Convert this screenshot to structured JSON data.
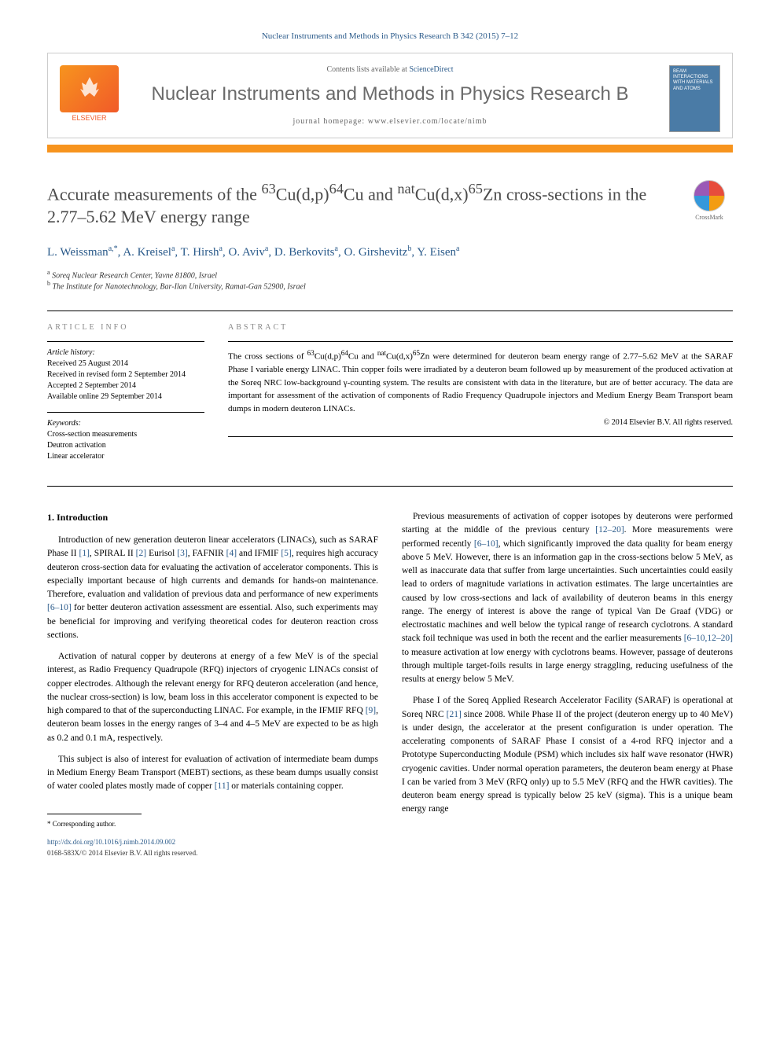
{
  "journal_ref": "Nuclear Instruments and Methods in Physics Research B 342 (2015) 7–12",
  "header": {
    "contents_text": "Contents lists available at ",
    "contents_link": "ScienceDirect",
    "journal_name": "Nuclear Instruments and Methods in Physics Research B",
    "homepage_label": "journal homepage: ",
    "homepage_url": "www.elsevier.com/locate/nimb",
    "elsevier_label": "ELSEVIER",
    "cover_text": "BEAM INTERACTIONS WITH MATERIALS AND ATOMS"
  },
  "title_html": "Accurate measurements of the <sup>63</sup>Cu(d,p)<sup>64</sup>Cu and <sup>nat</sup>Cu(d,x)<sup>65</sup>Zn cross-sections in the 2.77–5.62 MeV energy range",
  "crossmark_label": "CrossMark",
  "authors_html": "L. Weissman<span class='sup'>a,*</span>, A. Kreisel<span class='sup'>a</span>, T. Hirsh<span class='sup'>a</span>, O. Aviv<span class='sup'>a</span>, D. Berkovits<span class='sup'>a</span>, O. Girshevitz<span class='sup'>b</span>, Y. Eisen<span class='sup'>a</span>",
  "affiliations": [
    {
      "label": "a",
      "text": "Soreq Nuclear Research Center, Yavne 81800, Israel"
    },
    {
      "label": "b",
      "text": "The Institute for Nanotechnology, Bar-Ilan University, Ramat-Gan 52900, Israel"
    }
  ],
  "article_info": {
    "heading": "ARTICLE INFO",
    "history_label": "Article history:",
    "history": [
      "Received 25 August 2014",
      "Received in revised form 2 September 2014",
      "Accepted 2 September 2014",
      "Available online 29 September 2014"
    ],
    "keywords_label": "Keywords:",
    "keywords": [
      "Cross-section measurements",
      "Deutron activation",
      "Linear accelerator"
    ]
  },
  "abstract": {
    "heading": "ABSTRACT",
    "text_html": "The cross sections of <sup>63</sup>Cu(d,p)<sup>64</sup>Cu and <sup>nat</sup>Cu(d,x)<sup>65</sup>Zn were determined for deuteron beam energy range of 2.77–5.62 MeV at the SARAF Phase I variable energy LINAC. Thin copper foils were irradiated by a deuteron beam followed up by measurement of the produced activation at the Soreq NRC low-background γ-counting system. The results are consistent with data in the literature, but are of better accuracy. The data are important for assessment of the activation of components of Radio Frequency Quadrupole injectors and Medium Energy Beam Transport beam dumps in modern deuteron LINACs.",
    "copyright": "© 2014 Elsevier B.V. All rights reserved."
  },
  "body": {
    "section1_heading": "1. Introduction",
    "col1": {
      "p1_html": "Introduction of new generation deuteron linear accelerators (LINACs), such as SARAF Phase II <span class='ref-link'>[1]</span>, SPIRAL II <span class='ref-link'>[2]</span> Eurisol <span class='ref-link'>[3]</span>, FAFNIR <span class='ref-link'>[4]</span> and IFMIF <span class='ref-link'>[5]</span>, requires high accuracy deuteron cross-section data for evaluating the activation of accelerator components. This is especially important because of high currents and demands for hands-on maintenance. Therefore, evaluation and validation of previous data and performance of new experiments <span class='ref-link'>[6–10]</span> for better deuteron activation assessment are essential. Also, such experiments may be beneficial for improving and verifying theoretical codes for deuteron reaction cross sections.",
      "p2_html": "Activation of natural copper by deuterons at energy of a few MeV is of the special interest, as Radio Frequency Quadrupole (RFQ) injectors of cryogenic LINACs consist of copper electrodes. Although the relevant energy for RFQ deuteron acceleration (and hence, the nuclear cross-section) is low, beam loss in this accelerator component is expected to be high compared to that of the superconducting LINAC. For example, in the IFMIF RFQ <span class='ref-link'>[9]</span>, deuteron beam losses in the energy ranges of 3–4 and 4–5 MeV are expected to be as high as 0.2 and 0.1 mA, respectively.",
      "p3_html": "This subject is also of interest for evaluation of activation of intermediate beam dumps in Medium Energy Beam Transport (MEBT) sections, as these beam dumps usually consist of water cooled plates mostly made of copper <span class='ref-link'>[11]</span> or materials containing copper."
    },
    "col2": {
      "p1_html": "Previous measurements of activation of copper isotopes by deuterons were performed starting at the middle of the previous century <span class='ref-link'>[12–20]</span>. More measurements were performed recently <span class='ref-link'>[6–10]</span>, which significantly improved the data quality for beam energy above 5 MeV. However, there is an information gap in the cross-sections below 5 MeV, as well as inaccurate data that suffer from large uncertainties. Such uncertainties could easily lead to orders of magnitude variations in activation estimates. The large uncertainties are caused by low cross-sections and lack of availability of deuteron beams in this energy range. The energy of interest is above the range of typical Van De Graaf (VDG) or electrostatic machines and well below the typical range of research cyclotrons. A standard stack foil technique was used in both the recent and the earlier measurements <span class='ref-link'>[6–10,12–20]</span> to measure activation at low energy with cyclotrons beams. However, passage of deuterons through multiple target-foils results in large energy straggling, reducing usefulness of the results at energy below 5 MeV.",
      "p2_html": "Phase I of the Soreq Applied Research Accelerator Facility (SARAF) is operational at Soreq NRC <span class='ref-link'>[21]</span> since 2008. While Phase II of the project (deuteron energy up to 40 MeV) is under design, the accelerator at the present configuration is under operation. The accelerating components of SARAF Phase I consist of a 4-rod RFQ injector and a Prototype Superconducting Module (PSM) which includes six half wave resonator (HWR) cryogenic cavities. Under normal operation parameters, the deuteron beam energy at Phase I can be varied from 3 MeV (RFQ only) up to 5.5 MeV (RFQ and the HWR cavities). The deuteron beam energy spread is typically below 25 keV (sigma). This is a unique beam energy range"
    }
  },
  "footer": {
    "corresponding": "* Corresponding author.",
    "doi": "http://dx.doi.org/10.1016/j.nimb.2014.09.002",
    "copyright": "0168-583X/© 2014 Elsevier B.V. All rights reserved."
  },
  "colors": {
    "link": "#2a5a8a",
    "orange": "#f7941e",
    "title_gray": "#4a4a4a"
  }
}
